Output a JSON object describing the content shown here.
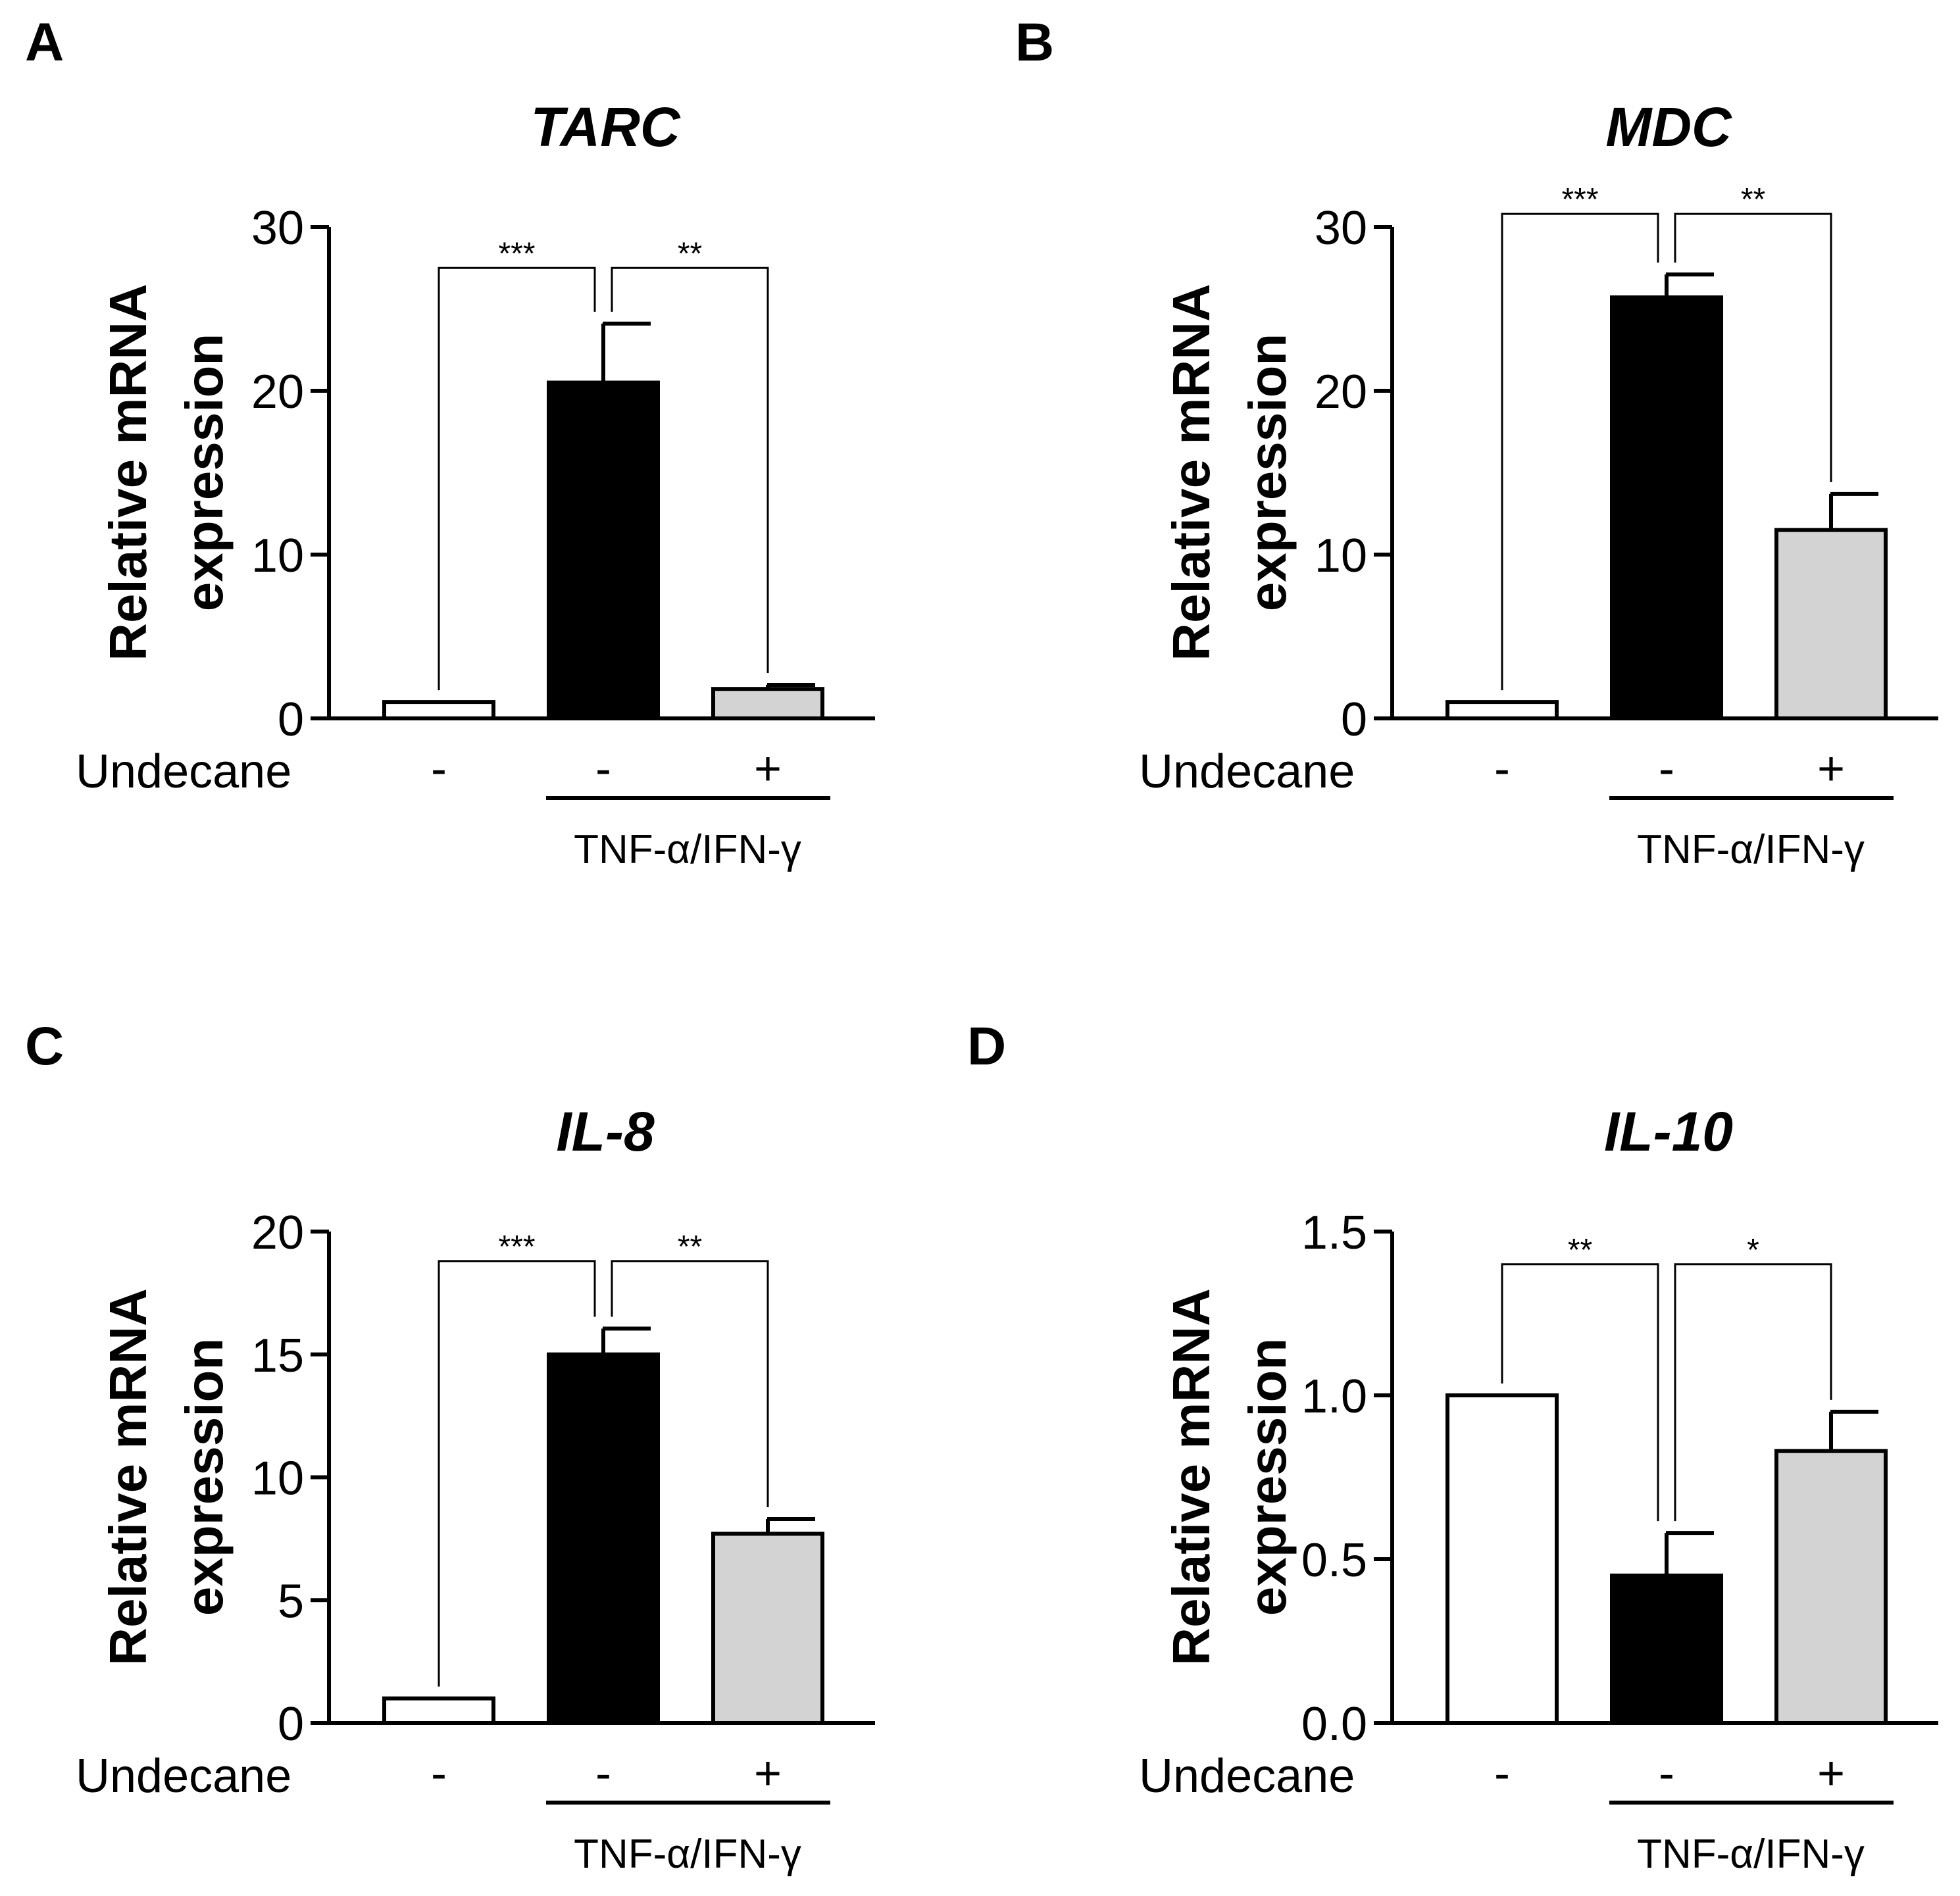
{
  "figure": {
    "panels": [
      "A",
      "B",
      "C",
      "D"
    ]
  },
  "chart_data": [
    {
      "panel": "A",
      "type": "bar",
      "title": "TARC",
      "ylabel": [
        "Relative mRNA",
        "expression"
      ],
      "row_label": "Undecane",
      "categories": [
        "-",
        "-",
        "+"
      ],
      "group_label": "TNF-α/IFN-γ",
      "values": [
        1.0,
        20.5,
        1.8
      ],
      "errors": [
        0,
        3.6,
        0.25
      ],
      "colors": [
        "#ffffff",
        "#000000",
        "#d3d3d3"
      ],
      "ylim": [
        0,
        30
      ],
      "yticks": [
        "0",
        "10",
        "20",
        "30"
      ],
      "ytick_values": [
        0,
        10,
        20,
        30
      ],
      "significance": [
        {
          "from": 0,
          "to": 1,
          "label": "***",
          "level": 27.5
        },
        {
          "from": 1,
          "to": 2,
          "label": "**",
          "level": 27.5
        }
      ]
    },
    {
      "panel": "B",
      "type": "bar",
      "title": "MDC",
      "ylabel": [
        "Relative mRNA",
        "expression"
      ],
      "row_label": "Undecane",
      "categories": [
        "-",
        "-",
        "+"
      ],
      "group_label": "TNF-α/IFN-γ",
      "values": [
        1.0,
        25.7,
        11.5
      ],
      "errors": [
        0,
        1.4,
        2.2
      ],
      "colors": [
        "#ffffff",
        "#000000",
        "#d3d3d3"
      ],
      "ylim": [
        0,
        30
      ],
      "yticks": [
        "0",
        "10",
        "20",
        "30"
      ],
      "ytick_values": [
        0,
        10,
        20,
        30
      ],
      "significance": [
        {
          "from": 0,
          "to": 1,
          "label": "***",
          "level": 30.8
        },
        {
          "from": 1,
          "to": 2,
          "label": "**",
          "level": 30.8
        }
      ]
    },
    {
      "panel": "C",
      "type": "bar",
      "title": "IL-8",
      "ylabel": [
        "Relative mRNA",
        "expression"
      ],
      "row_label": "Undecane",
      "categories": [
        "-",
        "-",
        "+"
      ],
      "group_label": "TNF-α/IFN-γ",
      "values": [
        1.0,
        15.0,
        7.7
      ],
      "errors": [
        0,
        1.05,
        0.6
      ],
      "colors": [
        "#ffffff",
        "#000000",
        "#d3d3d3"
      ],
      "ylim": [
        0,
        20
      ],
      "yticks": [
        "0",
        "5",
        "10",
        "15",
        "20"
      ],
      "ytick_values": [
        0,
        5,
        10,
        15,
        20
      ],
      "significance": [
        {
          "from": 0,
          "to": 1,
          "label": "***",
          "level": 18.8
        },
        {
          "from": 1,
          "to": 2,
          "label": "**",
          "level": 18.8
        }
      ]
    },
    {
      "panel": "D",
      "type": "bar",
      "title": "IL-10",
      "ylabel": [
        "Relative mRNA",
        "expression"
      ],
      "row_label": "Undecane",
      "categories": [
        "-",
        "-",
        "+"
      ],
      "group_label": "TNF-α/IFN-γ",
      "values": [
        1.0,
        0.45,
        0.83
      ],
      "errors": [
        0,
        0.13,
        0.12
      ],
      "colors": [
        "#ffffff",
        "#000000",
        "#d3d3d3"
      ],
      "ylim": [
        0,
        1.5
      ],
      "yticks": [
        "0.0",
        "0.5",
        "1.0",
        "1.5"
      ],
      "ytick_values": [
        0,
        0.5,
        1.0,
        1.5
      ],
      "significance": [
        {
          "from": 0,
          "to": 1,
          "label": "**",
          "level": 1.4
        },
        {
          "from": 1,
          "to": 2,
          "label": "*",
          "level": 1.4
        }
      ]
    }
  ]
}
